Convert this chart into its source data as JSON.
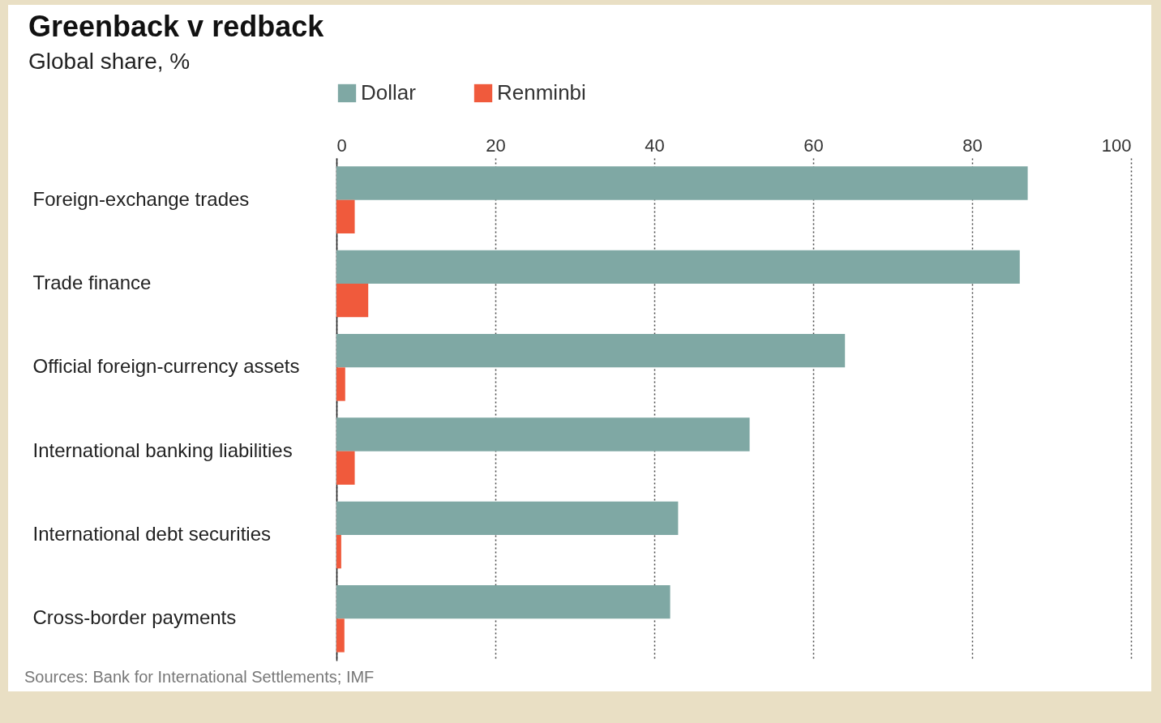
{
  "chart_data": {
    "type": "bar",
    "orientation": "horizontal",
    "title": "Greenback v redback",
    "subtitle": "Global share, %",
    "categories": [
      "Foreign-exchange trades",
      "Trade finance",
      "Official foreign-currency assets",
      "International banking liabilities",
      "International debt securities",
      "Cross-border payments"
    ],
    "series": [
      {
        "name": "Dollar",
        "color": "#7fa8a4",
        "values": [
          87,
          86,
          64,
          52,
          43,
          42
        ]
      },
      {
        "name": "Renminbi",
        "color": "#f05a3c",
        "values": [
          2.3,
          4,
          1.1,
          2.3,
          0.6,
          1
        ]
      }
    ],
    "xlim": [
      0,
      100
    ],
    "xticks": [
      0,
      20,
      40,
      60,
      80,
      100
    ],
    "grid": "x",
    "legend": "top",
    "annotations": [
      "Sources: Bank for International Settlements; IMF"
    ]
  }
}
